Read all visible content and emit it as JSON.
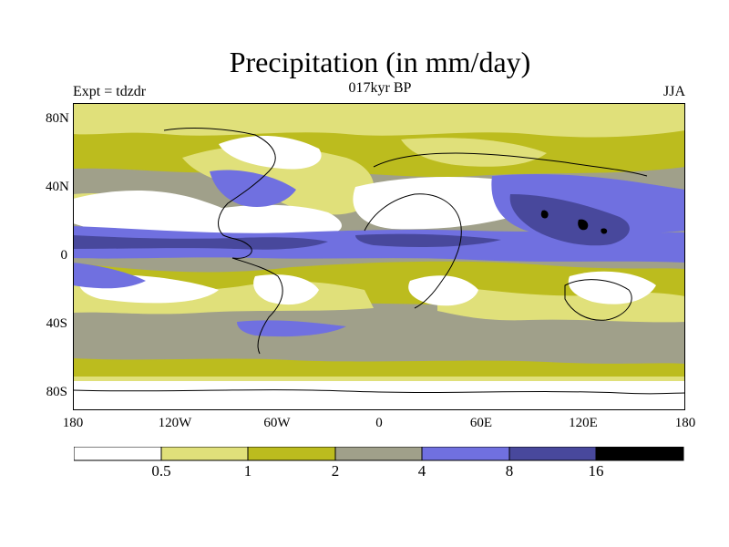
{
  "title": "Precipitation (in mm/day)",
  "left_label": "Expt = tdzdr",
  "center_label": "017kyr BP",
  "right_label": "JJA",
  "lat_labels": [
    "80N",
    "40N",
    "0",
    "40S",
    "80S"
  ],
  "lon_labels": [
    "180",
    "120W",
    "60W",
    "0",
    "60E",
    "120E",
    "180"
  ],
  "colorbar": {
    "colors": [
      "#ffffff",
      "#e0e07a",
      "#bcbc1e",
      "#a0a08a",
      "#7070e0",
      "#48489c",
      "#000000"
    ],
    "levels": [
      "0.5",
      "1",
      "2",
      "4",
      "8",
      "16"
    ]
  },
  "colors": {
    "c0": "#ffffff",
    "c1": "#e0e07a",
    "c2": "#bcbc1e",
    "c3": "#a0a08a",
    "c4": "#7070e0",
    "c5": "#48489c",
    "c6": "#000000"
  }
}
